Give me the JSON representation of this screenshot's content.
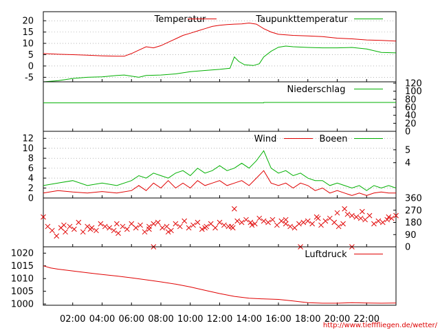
{
  "colors": {
    "red": "#e00000",
    "green": "#00b000",
    "grid": "#888888",
    "credit": "#dd0000"
  },
  "credit_text": "http://www.tiefffliegen.de/wetter/",
  "x_axis": {
    "range_hours": [
      0,
      24
    ],
    "ticks": [
      {
        "h": 2,
        "label": "02:00"
      },
      {
        "h": 4,
        "label": "04:00"
      },
      {
        "h": 6,
        "label": "06:00"
      },
      {
        "h": 8,
        "label": "08:00"
      },
      {
        "h": 10,
        "label": "10:00"
      },
      {
        "h": 12,
        "label": "12:00"
      },
      {
        "h": 14,
        "label": "14:00"
      },
      {
        "h": 16,
        "label": "16:00"
      },
      {
        "h": 18,
        "label": "18:00"
      },
      {
        "h": 20,
        "label": "20:00"
      },
      {
        "h": 22,
        "label": "22:00"
      }
    ]
  },
  "chart_data": [
    {
      "type": "line",
      "panel": "temperature",
      "ylim": [
        -7,
        24
      ],
      "yticks_left": [
        "20",
        "15",
        "10",
        "5",
        "0",
        "-5"
      ],
      "ytick_values": [
        20,
        15,
        10,
        5,
        0,
        -5
      ],
      "grid": true,
      "legend_placement": "top",
      "series": [
        {
          "name": "Temperatur",
          "color": "red",
          "x": [
            0,
            1,
            2,
            3,
            4,
            5,
            5.5,
            6,
            6.5,
            7,
            7.5,
            8,
            8.5,
            9,
            9.5,
            10,
            10.5,
            11,
            11.5,
            12,
            12.5,
            13,
            13.5,
            14,
            14.5,
            15,
            15.5,
            16,
            17,
            18,
            19,
            20,
            21,
            22,
            23,
            24
          ],
          "y": [
            5.5,
            5.2,
            5,
            4.8,
            4.5,
            4.3,
            4.3,
            5.5,
            7,
            8.5,
            8,
            9,
            10.5,
            12,
            13.5,
            14.5,
            15.5,
            16.5,
            17.5,
            18,
            18.3,
            18.5,
            18.6,
            19,
            18.5,
            16.5,
            15,
            14,
            13.5,
            13.3,
            13,
            12.3,
            12,
            11.5,
            11.3,
            11
          ]
        },
        {
          "name": "Taupunkttemperatur",
          "color": "green",
          "x": [
            0,
            1,
            2,
            3,
            4,
            5,
            5.5,
            6,
            6.5,
            7,
            8,
            9,
            10,
            11,
            12,
            12.7,
            13,
            13.3,
            13.7,
            14.3,
            14.7,
            15,
            15.5,
            16,
            16.5,
            17,
            18,
            19,
            20,
            21,
            22,
            23,
            24
          ],
          "y": [
            -7,
            -6.5,
            -5.5,
            -5,
            -4.8,
            -4.2,
            -4,
            -4.5,
            -5,
            -4.2,
            -4,
            -3.5,
            -2.5,
            -2,
            -1.5,
            -1,
            4,
            2,
            0.5,
            0.2,
            1,
            4,
            6.5,
            8.3,
            8.8,
            8.5,
            8.2,
            8,
            8,
            8.2,
            7.5,
            6,
            5.8
          ]
        }
      ]
    },
    {
      "type": "line",
      "panel": "precipitation",
      "ylim": [
        0,
        120
      ],
      "yticks_right": [
        "120",
        "100",
        "80",
        "60",
        "40",
        "20",
        "0"
      ],
      "ytick_values": [
        120,
        100,
        80,
        60,
        40,
        20,
        0
      ],
      "grid": false,
      "legend_placement": "top-right",
      "series": [
        {
          "name": "Niederschlag",
          "color": "green",
          "x": [
            0,
            15,
            15.01,
            24
          ],
          "y": [
            71,
            71,
            72,
            72
          ]
        }
      ]
    },
    {
      "type": "line",
      "panel": "wind",
      "ylim": [
        0,
        13
      ],
      "yticks_left": [
        "12",
        "10",
        "8",
        "6",
        "4",
        "2",
        "0"
      ],
      "ytick_values": [
        12,
        10,
        8,
        6,
        4,
        2,
        0
      ],
      "yticks_right": [
        "5",
        "4"
      ],
      "ytick_right_values": [
        9.7,
        7.1
      ],
      "grid": true,
      "legend_placement": "top-right",
      "series": [
        {
          "name": "Wind",
          "color": "red",
          "x": [
            0,
            1,
            2,
            3,
            4,
            5,
            6,
            6.5,
            7,
            7.5,
            8,
            8.5,
            9,
            9.5,
            10,
            10.5,
            11,
            11.5,
            12,
            12.5,
            13,
            13.5,
            14,
            14.5,
            15,
            15.5,
            16,
            16.5,
            17,
            17.5,
            18,
            18.5,
            19,
            19.5,
            20,
            20.5,
            21,
            21.5,
            22,
            22.5,
            23,
            23.5,
            24
          ],
          "y": [
            1,
            1.5,
            1.2,
            1,
            1.3,
            1,
            1.5,
            2.5,
            1.5,
            3,
            2,
            3.5,
            2,
            3,
            2,
            3.5,
            2.5,
            3,
            3.5,
            2.5,
            3,
            3.5,
            2.5,
            4,
            5.5,
            3,
            2.5,
            3,
            2,
            3,
            2.5,
            1.5,
            2,
            1,
            1.5,
            1,
            0.5,
            1,
            0.5,
            1,
            1.2,
            1,
            1
          ]
        },
        {
          "name": "Boeen",
          "color": "green",
          "x": [
            0,
            1,
            2,
            3,
            4,
            5,
            6,
            6.5,
            7,
            7.5,
            8,
            8.5,
            9,
            9.5,
            10,
            10.5,
            11,
            11.5,
            12,
            12.5,
            13,
            13.5,
            14,
            14.5,
            15,
            15.5,
            16,
            16.5,
            17,
            17.5,
            18,
            18.5,
            19,
            19.5,
            20,
            20.5,
            21,
            21.5,
            22,
            22.5,
            23,
            23.5,
            24
          ],
          "y": [
            2.5,
            3,
            3.5,
            2.5,
            3,
            2.5,
            3.5,
            4.5,
            4,
            5,
            4.5,
            4,
            5,
            5.5,
            4.5,
            6,
            5,
            5.5,
            6.5,
            5.5,
            6,
            7,
            6,
            7.5,
            9.5,
            6,
            5,
            5.5,
            4.5,
            5,
            4,
            3.5,
            3.5,
            2.5,
            3,
            2.5,
            2,
            2.5,
            1.5,
            2.5,
            2,
            2.5,
            2
          ]
        }
      ]
    },
    {
      "type": "scatter",
      "panel": "wind_direction",
      "ylim": [
        0,
        360
      ],
      "yticks_right": [
        "360",
        "270",
        "180",
        "90",
        "0"
      ],
      "ytick_values": [
        360,
        270,
        180,
        90,
        0
      ],
      "grid": false,
      "series": [
        {
          "color": "red",
          "marker": "x",
          "x": [
            0,
            0.3,
            0.6,
            0.9,
            1.2,
            1.5,
            1.8,
            2.1,
            2.4,
            2.7,
            3,
            3.3,
            3.6,
            3.9,
            4.2,
            4.5,
            4.8,
            5.1,
            5.4,
            5.7,
            6,
            6.3,
            6.6,
            6.9,
            7.2,
            7.5,
            7.8,
            8.1,
            8.4,
            8.7,
            9,
            9.3,
            9.6,
            9.9,
            10.2,
            10.5,
            10.8,
            11.1,
            11.4,
            11.7,
            12,
            12.3,
            12.6,
            12.9,
            13.2,
            13.5,
            13.8,
            14.1,
            14.4,
            14.7,
            15,
            15.3,
            15.6,
            15.9,
            16.2,
            16.5,
            16.8,
            17.1,
            17.4,
            17.7,
            18,
            18.3,
            18.6,
            18.9,
            19.2,
            19.5,
            19.8,
            20.1,
            20.4,
            20.7,
            21,
            21.3,
            21.6,
            21.9,
            22.2,
            22.5,
            22.8,
            23.1,
            23.4,
            23.7,
            24,
            1.4,
            3.2,
            5,
            7.2,
            8.5,
            11,
            12.8,
            14.2,
            16.5,
            18.7,
            20,
            21.7,
            23.5,
            17.5,
            21,
            13,
            7.5,
            20.5
          ],
          "y": [
            220,
            150,
            120,
            80,
            140,
            110,
            150,
            130,
            180,
            110,
            150,
            140,
            120,
            170,
            150,
            140,
            120,
            100,
            150,
            130,
            170,
            140,
            160,
            110,
            130,
            170,
            180,
            140,
            150,
            120,
            170,
            150,
            190,
            140,
            160,
            180,
            130,
            150,
            170,
            140,
            180,
            160,
            150,
            140,
            190,
            180,
            200,
            180,
            170,
            210,
            190,
            180,
            200,
            160,
            190,
            170,
            150,
            140,
            170,
            180,
            190,
            170,
            220,
            160,
            190,
            210,
            180,
            150,
            170,
            240,
            230,
            220,
            210,
            200,
            230,
            170,
            190,
            180,
            200,
            210,
            230,
            160,
            130,
            170,
            150,
            110,
            140,
            150,
            160,
            200,
            210,
            250,
            260,
            220,
            0,
            0,
            280,
            0,
            280
          ]
        }
      ]
    },
    {
      "type": "line",
      "panel": "pressure",
      "ylim": [
        999.5,
        1022.5
      ],
      "yticks_left": [
        "1020",
        "1015",
        "1010",
        "1005",
        "1000"
      ],
      "ytick_values": [
        1020,
        1015,
        1010,
        1005,
        1000
      ],
      "grid": false,
      "legend_placement": "top-right",
      "series": [
        {
          "name": "Luftdruck",
          "color": "red",
          "x": [
            0,
            0.5,
            1,
            2,
            3,
            4,
            5,
            6,
            7,
            8,
            9,
            10,
            11,
            12,
            13,
            14,
            15,
            16,
            17,
            18,
            19,
            20,
            21,
            22,
            23,
            24
          ],
          "y": [
            1015,
            1014.2,
            1013.7,
            1013,
            1012.3,
            1011.6,
            1011,
            1010.3,
            1009.5,
            1008.7,
            1007.8,
            1006.7,
            1005.4,
            1004.1,
            1003,
            1002.3,
            1002,
            1001.8,
            1001.2,
            1000.5,
            1000.3,
            1000.3,
            1000.5,
            1000.4,
            1000.3,
            1000.4
          ]
        }
      ]
    }
  ]
}
